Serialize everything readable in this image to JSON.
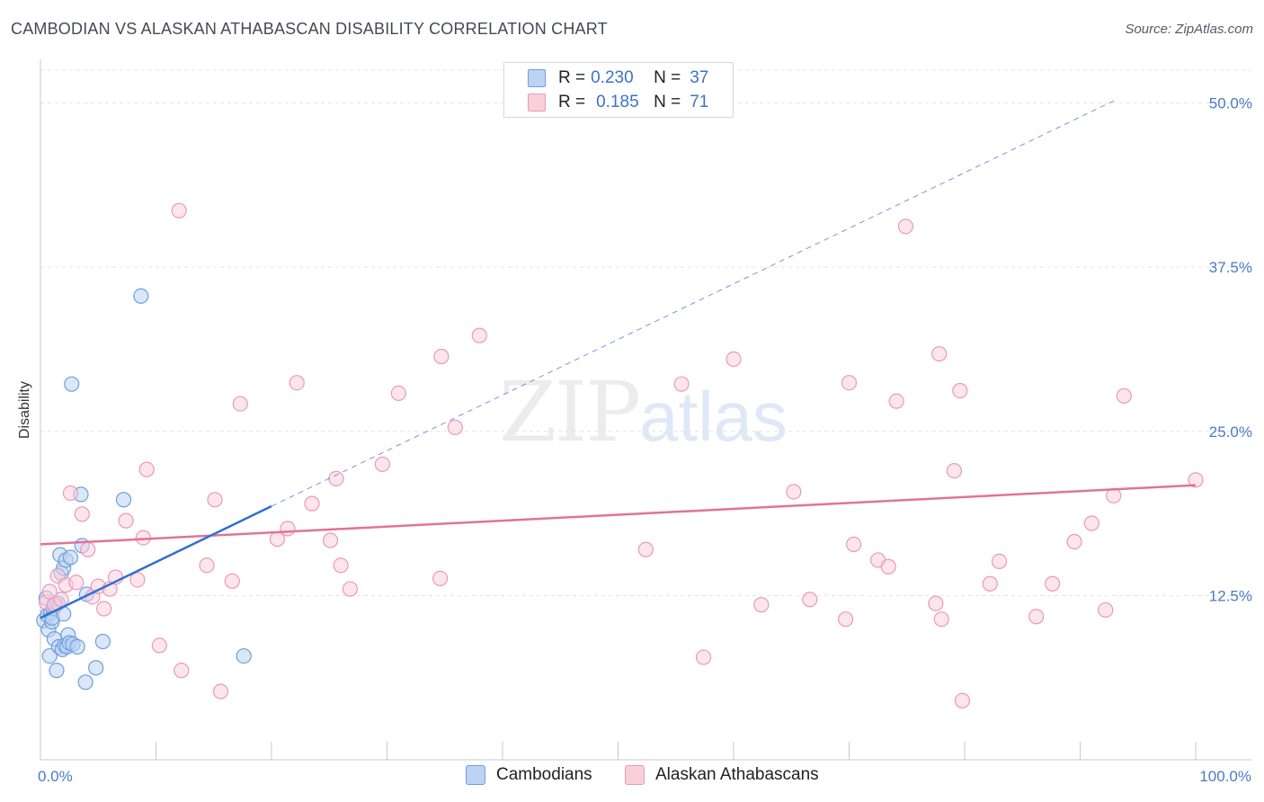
{
  "header": {
    "title": "CAMBODIAN VS ALASKAN ATHABASCAN DISABILITY CORRELATION CHART",
    "source": "Source: ZipAtlas.com"
  },
  "watermark": {
    "zip": "ZIP",
    "atlas": "atlas"
  },
  "legend": {
    "r_label": "R =",
    "n_label": "N =",
    "rows": [
      {
        "r": "0.230",
        "n": "37"
      },
      {
        "r": "0.185",
        "n": "71"
      }
    ]
  },
  "colors": {
    "cambodian_fill": "#bcd3f3",
    "cambodian_stroke": "#6d9ee0",
    "cambodian_line": "#2f6fd1",
    "athabascan_fill": "#f9cfdc",
    "athabascan_stroke": "#e99ab5",
    "athabascan_line": "#e0739a",
    "axis_text": "#4a7ac7",
    "grid": "#e3e3e3"
  },
  "chart_data": {
    "type": "scatter",
    "title": "CAMBODIAN VS ALASKAN ATHABASCAN DISABILITY CORRELATION CHART",
    "xlabel": "",
    "ylabel": "Disability",
    "xlim": [
      0,
      100
    ],
    "ylim": [
      0,
      52.5
    ],
    "x_tick_labels": [
      {
        "value": 0,
        "label": "0.0%"
      },
      {
        "value": 100,
        "label": "100.0%"
      }
    ],
    "x_minor_ticks": [
      0,
      10,
      20,
      30,
      40,
      50,
      60,
      70,
      80,
      90,
      100
    ],
    "y_ticks": [
      {
        "value": 12.5,
        "label": "12.5%"
      },
      {
        "value": 25.0,
        "label": "25.0%"
      },
      {
        "value": 37.5,
        "label": "37.5%"
      },
      {
        "value": 50.0,
        "label": "50.0%"
      }
    ],
    "series": [
      {
        "name": "Cambodians",
        "color": "#6d9ee0",
        "points": [
          [
            0.3,
            10.6
          ],
          [
            0.5,
            12.3
          ],
          [
            0.6,
            11.0
          ],
          [
            0.7,
            9.9
          ],
          [
            0.8,
            7.9
          ],
          [
            0.9,
            11.2
          ],
          [
            1.0,
            10.5
          ],
          [
            1.1,
            11.5
          ],
          [
            1.2,
            9.2
          ],
          [
            1.3,
            11.8
          ],
          [
            1.4,
            6.8
          ],
          [
            1.5,
            11.9
          ],
          [
            1.6,
            8.6
          ],
          [
            1.7,
            15.6
          ],
          [
            1.8,
            14.2
          ],
          [
            1.9,
            8.4
          ],
          [
            2.0,
            14.6
          ],
          [
            2.1,
            8.7
          ],
          [
            2.2,
            15.2
          ],
          [
            2.3,
            8.6
          ],
          [
            2.4,
            9.5
          ],
          [
            2.5,
            8.9
          ],
          [
            2.6,
            15.4
          ],
          [
            2.7,
            28.6
          ],
          [
            2.8,
            8.8
          ],
          [
            3.2,
            8.6
          ],
          [
            3.5,
            20.2
          ],
          [
            3.6,
            16.3
          ],
          [
            3.9,
            5.9
          ],
          [
            4.0,
            12.6
          ],
          [
            4.8,
            7.0
          ],
          [
            5.4,
            9.0
          ],
          [
            7.2,
            19.8
          ],
          [
            8.7,
            35.3
          ],
          [
            17.6,
            7.9
          ],
          [
            1.0,
            10.8
          ],
          [
            2.0,
            11.1
          ]
        ]
      },
      {
        "name": "Alaskan Athabascans",
        "color": "#e99ab5",
        "points": [
          [
            0.5,
            12.0
          ],
          [
            0.8,
            12.8
          ],
          [
            1.2,
            11.8
          ],
          [
            1.5,
            14.0
          ],
          [
            1.8,
            12.2
          ],
          [
            2.2,
            13.3
          ],
          [
            2.6,
            20.3
          ],
          [
            3.1,
            13.5
          ],
          [
            3.6,
            18.7
          ],
          [
            4.1,
            16.0
          ],
          [
            4.5,
            12.4
          ],
          [
            5.0,
            13.2
          ],
          [
            5.5,
            11.5
          ],
          [
            6.0,
            13.0
          ],
          [
            6.5,
            13.9
          ],
          [
            7.4,
            18.2
          ],
          [
            8.4,
            13.7
          ],
          [
            8.9,
            16.9
          ],
          [
            9.2,
            22.1
          ],
          [
            10.3,
            8.7
          ],
          [
            12.0,
            41.8
          ],
          [
            12.2,
            6.8
          ],
          [
            14.4,
            14.8
          ],
          [
            15.1,
            19.8
          ],
          [
            15.6,
            5.2
          ],
          [
            16.6,
            13.6
          ],
          [
            17.3,
            27.1
          ],
          [
            20.5,
            16.8
          ],
          [
            21.4,
            17.6
          ],
          [
            22.2,
            28.7
          ],
          [
            23.5,
            19.5
          ],
          [
            25.1,
            16.7
          ],
          [
            25.6,
            21.4
          ],
          [
            26.0,
            14.8
          ],
          [
            26.8,
            13.0
          ],
          [
            29.6,
            22.5
          ],
          [
            31.0,
            27.9
          ],
          [
            34.6,
            13.8
          ],
          [
            34.7,
            30.7
          ],
          [
            35.9,
            25.3
          ],
          [
            38.0,
            32.3
          ],
          [
            52.4,
            16.0
          ],
          [
            55.5,
            28.6
          ],
          [
            57.4,
            7.8
          ],
          [
            60.0,
            30.5
          ],
          [
            62.4,
            11.8
          ],
          [
            65.2,
            20.4
          ],
          [
            66.6,
            12.2
          ],
          [
            69.7,
            10.7
          ],
          [
            70.0,
            28.7
          ],
          [
            70.4,
            16.4
          ],
          [
            72.5,
            15.2
          ],
          [
            73.4,
            14.7
          ],
          [
            74.1,
            27.3
          ],
          [
            74.9,
            40.6
          ],
          [
            77.5,
            11.9
          ],
          [
            77.8,
            30.9
          ],
          [
            78.0,
            10.7
          ],
          [
            79.1,
            22.0
          ],
          [
            79.6,
            28.1
          ],
          [
            79.8,
            4.5
          ],
          [
            82.2,
            13.4
          ],
          [
            83.0,
            15.1
          ],
          [
            86.2,
            10.9
          ],
          [
            87.6,
            13.4
          ],
          [
            89.5,
            16.6
          ],
          [
            91.0,
            18.0
          ],
          [
            92.2,
            11.4
          ],
          [
            92.9,
            20.1
          ],
          [
            93.8,
            27.7
          ],
          [
            100.0,
            21.3
          ]
        ]
      }
    ],
    "trend_lines": [
      {
        "series": "Cambodians",
        "solid": [
          [
            0,
            10.8
          ],
          [
            20,
            19.3
          ]
        ],
        "dashed": [
          [
            20,
            19.3
          ],
          [
            93,
            50.2
          ]
        ]
      },
      {
        "series": "Alaskan Athabascans",
        "solid": [
          [
            0,
            16.4
          ],
          [
            100,
            20.9
          ]
        ]
      }
    ]
  }
}
